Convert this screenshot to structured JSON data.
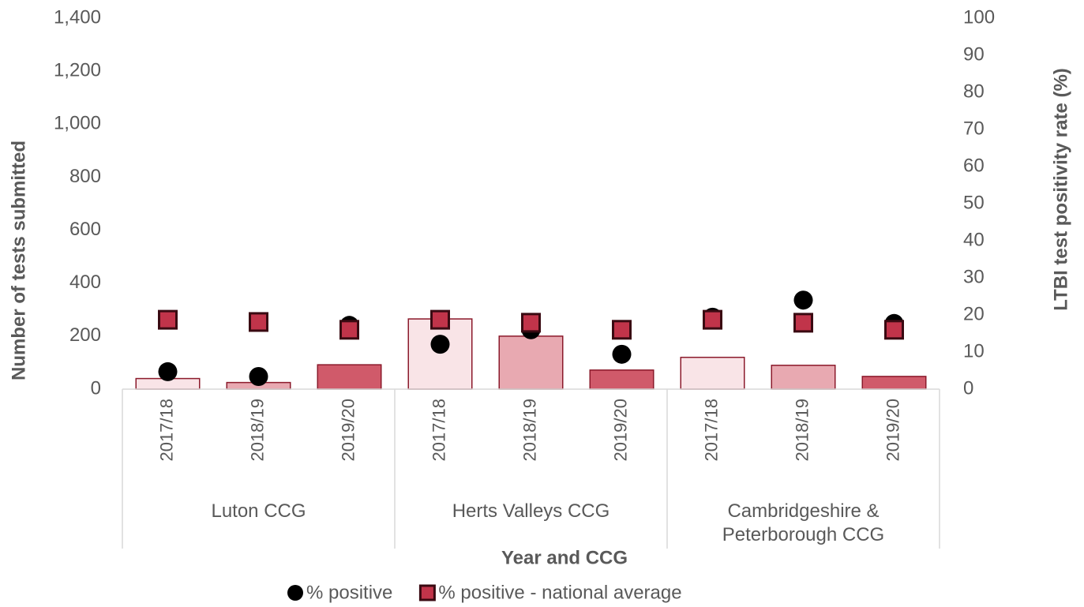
{
  "chart_data": {
    "type": "bar-dot",
    "x_label": "Year and CCG",
    "y_label": "Number of tests submitted",
    "y2_label": "LTBI test positivity rate (%)",
    "groups": [
      {
        "label": "Luton CCG",
        "categories": [
          "2017/18",
          "2018/19",
          "2019/20"
        ]
      },
      {
        "label": "Herts Valleys CCG",
        "categories": [
          "2017/18",
          "2018/19",
          "2019/20"
        ]
      },
      {
        "label": "Cambridgeshire & Peterborough CCG",
        "categories": [
          "2017/18",
          "2018/19",
          "2019/20"
        ]
      }
    ],
    "bars": {
      "values": [
        40,
        25,
        92,
        265,
        200,
        72,
        120,
        90,
        48
      ],
      "colors": [
        "#f9e4e7",
        "#e8a9b1",
        "#d05a6a",
        "#f9e4e7",
        "#e8a9b1",
        "#d05a6a",
        "#f9e4e7",
        "#e8a9b1",
        "#d05a6a"
      ],
      "stroke": "#8b1a2b"
    },
    "series": [
      {
        "name": "% positive",
        "color": "#000000",
        "marker": "circle",
        "axis": "y2",
        "values": [
          4.7,
          3.4,
          17.2,
          12.1,
          16.0,
          9.4,
          19.4,
          24.0,
          17.7
        ]
      },
      {
        "name": "% positive - national average",
        "color": "#c1344a",
        "marker": "square",
        "axis": "y2",
        "values": [
          18.7,
          18.1,
          16.0,
          18.7,
          17.9,
          16.0,
          18.7,
          17.9,
          16.0
        ]
      }
    ],
    "ylim": [
      0,
      1400
    ],
    "yticks": [
      0,
      200,
      400,
      600,
      800,
      {
        "value": 1000,
        "label": "1,000"
      },
      {
        "value": 1200,
        "label": "1,200"
      },
      {
        "value": 1400,
        "label": "1,400"
      }
    ],
    "y2lim": [
      0,
      100
    ],
    "y2ticks": [
      0,
      10,
      20,
      30,
      40,
      50,
      60,
      70,
      80,
      90,
      100
    ],
    "grid": false
  }
}
